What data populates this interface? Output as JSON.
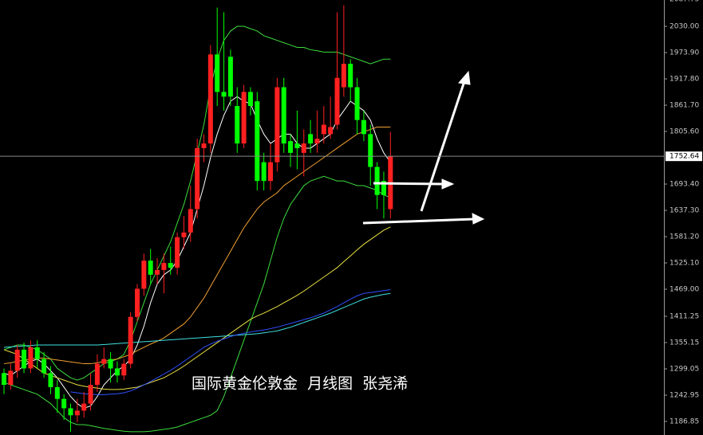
{
  "chart_data": {
    "type": "candlestick",
    "annotation": "国际黄金伦敦金  月线图  张尧浠",
    "categories": [
      null,
      null,
      null,
      null,
      null,
      null,
      null,
      null,
      null,
      null,
      null,
      null,
      null,
      null,
      null,
      null,
      null,
      null,
      null,
      null,
      null,
      null,
      null,
      null,
      null,
      null,
      null,
      null,
      null,
      null,
      null,
      null,
      null,
      null,
      null,
      null,
      null,
      null,
      null,
      null,
      null,
      null,
      null,
      null,
      null,
      null,
      null,
      null,
      null,
      null,
      null,
      null,
      null,
      null,
      null,
      null,
      null,
      null,
      null
    ],
    "open": [
      1290,
      1265,
      1295,
      1340,
      1300,
      1345,
      1320,
      1290,
      1260,
      1235,
      1215,
      1200,
      1210,
      1225,
      1265,
      1310,
      1320,
      1300,
      1285,
      1310,
      1410,
      1470,
      1530,
      1500,
      1510,
      1525,
      1515,
      1580,
      1590,
      1640,
      1770,
      1780,
      1970,
      1890,
      1965,
      1860,
      1780,
      1890,
      1870,
      1740,
      1700,
      1740,
      1900,
      1785,
      1780,
      1760,
      1800,
      1780,
      1800,
      1800,
      1820,
      1900,
      1950,
      1900,
      1830,
      1800,
      1730,
      1700,
      1640
    ],
    "high": [
      1300,
      1310,
      1350,
      1355,
      1360,
      1360,
      1335,
      1305,
      1275,
      1245,
      1225,
      1235,
      1250,
      1290,
      1330,
      1345,
      1335,
      1315,
      1320,
      1420,
      1480,
      1545,
      1555,
      1535,
      1545,
      1560,
      1590,
      1625,
      1690,
      1790,
      1800,
      1990,
      2070,
      2060,
      1980,
      1900,
      1905,
      1900,
      1890,
      1760,
      1780,
      1920,
      1920,
      1800,
      1850,
      1810,
      1830,
      1850,
      1860,
      1880,
      2060,
      2075,
      1960,
      1920,
      1850,
      1820,
      1740,
      1720,
      1805
    ],
    "low": [
      1245,
      1255,
      1280,
      1290,
      1290,
      1300,
      1280,
      1245,
      1205,
      1190,
      1165,
      1185,
      1195,
      1210,
      1250,
      1300,
      1270,
      1270,
      1275,
      1300,
      1400,
      1455,
      1480,
      1480,
      1460,
      1500,
      1500,
      1555,
      1570,
      1620,
      1740,
      1760,
      1860,
      1850,
      1860,
      1760,
      1770,
      1840,
      1680,
      1680,
      1680,
      1720,
      1760,
      1730,
      1725,
      1710,
      1760,
      1760,
      1780,
      1790,
      1810,
      1880,
      1870,
      1800,
      1785,
      1690,
      1640,
      1620,
      1620
    ],
    "close": [
      1265,
      1295,
      1340,
      1300,
      1345,
      1320,
      1290,
      1260,
      1235,
      1215,
      1200,
      1210,
      1225,
      1265,
      1310,
      1320,
      1300,
      1285,
      1310,
      1410,
      1470,
      1530,
      1500,
      1510,
      1525,
      1515,
      1580,
      1590,
      1640,
      1770,
      1780,
      1970,
      1890,
      1880,
      1880,
      1780,
      1890,
      1860,
      1700,
      1700,
      1740,
      1900,
      1780,
      1760,
      1770,
      1780,
      1780,
      1790,
      1820,
      1815,
      1920,
      1950,
      1900,
      1830,
      1800,
      1730,
      1670,
      1670,
      1752.64
    ],
    "up_color": "#ff2020",
    "down_color": "#00ff00",
    "last_price": 1752.64,
    "overlays": [
      {
        "color": "#3ddc3d",
        "values": [
          1340,
          1345,
          1350,
          1350,
          1345,
          1340,
          1330,
          1320,
          1300,
          1290,
          1280,
          1275,
          1280,
          1290,
          1300,
          1310,
          1315,
          1320,
          1330,
          1360,
          1400,
          1440,
          1480,
          1510,
          1540,
          1570,
          1610,
          1650,
          1700,
          1760,
          1820,
          1900,
          1960,
          2000,
          2020,
          2030,
          2030,
          2025,
          2020,
          2010,
          2005,
          2000,
          1995,
          1990,
          1985,
          1985,
          1980,
          1978,
          1975,
          1975,
          1975,
          1970,
          1965,
          1960,
          1955,
          1950,
          1955,
          1960,
          1960
        ]
      },
      {
        "color": "#3ddc3d",
        "values": [
          1270,
          1265,
          1260,
          1255,
          1250,
          1245,
          1235,
          1225,
          1210,
          1195,
          1185,
          1180,
          1180,
          1178,
          1175,
          1172,
          1170,
          1168,
          1166,
          1165,
          1165,
          1165,
          1166,
          1168,
          1170,
          1172,
          1175,
          1180,
          1185,
          1190,
          1195,
          1200,
          1210,
          1240,
          1280,
          1320,
          1360,
          1400,
          1440,
          1480,
          1530,
          1580,
          1620,
          1650,
          1670,
          1690,
          1700,
          1705,
          1710,
          1705,
          1700,
          1700,
          1695,
          1690,
          1690,
          1685,
          1680,
          1670,
          1665
        ]
      },
      {
        "color": "#ffffff",
        "values": [
          1290,
          1285,
          1295,
          1305,
          1315,
          1320,
          1310,
          1295,
          1280,
          1260,
          1240,
          1225,
          1215,
          1220,
          1240,
          1265,
          1280,
          1295,
          1305,
          1320,
          1350,
          1390,
          1440,
          1480,
          1500,
          1510,
          1530,
          1560,
          1590,
          1640,
          1690,
          1750,
          1800,
          1840,
          1870,
          1880,
          1870,
          1865,
          1830,
          1800,
          1780,
          1790,
          1800,
          1800,
          1780,
          1770,
          1770,
          1780,
          1790,
          1800,
          1830,
          1850,
          1870,
          1860,
          1850,
          1830,
          1790,
          1760,
          1740
        ]
      },
      {
        "color": "#f0a030",
        "values": [
          1310,
          1312,
          1315,
          1318,
          1320,
          1322,
          1322,
          1320,
          1318,
          1316,
          1314,
          1312,
          1310,
          1310,
          1312,
          1315,
          1318,
          1320,
          1325,
          1330,
          1338,
          1345,
          1352,
          1358,
          1365,
          1375,
          1385,
          1395,
          1410,
          1430,
          1450,
          1475,
          1500,
          1525,
          1550,
          1575,
          1600,
          1620,
          1640,
          1655,
          1665,
          1675,
          1690,
          1700,
          1710,
          1720,
          1730,
          1740,
          1750,
          1760,
          1770,
          1780,
          1790,
          1800,
          1805,
          1810,
          1815,
          1815,
          1815
        ]
      },
      {
        "color": "#e8e040",
        "values": [
          1340,
          1335,
          1330,
          1320,
          1310,
          1300,
          1290,
          1285,
          1280,
          1275,
          1270,
          1265,
          1262,
          1260,
          1258,
          1256,
          1255,
          1255,
          1256,
          1258,
          1260,
          1265,
          1270,
          1275,
          1280,
          1288,
          1296,
          1305,
          1315,
          1325,
          1335,
          1345,
          1355,
          1365,
          1375,
          1385,
          1395,
          1405,
          1412,
          1418,
          1425,
          1432,
          1440,
          1448,
          1456,
          1465,
          1475,
          1485,
          1495,
          1505,
          1515,
          1528,
          1540,
          1553,
          1565,
          1575,
          1585,
          1595,
          1602
        ]
      },
      {
        "color": "#40e0e0",
        "values": [
          1345,
          1346,
          1347,
          1348,
          1349,
          1350,
          1350,
          1350,
          1350,
          1350,
          1350,
          1350,
          1350,
          1350,
          1350,
          1351,
          1352,
          1353,
          1354,
          1355,
          1356,
          1357,
          1358,
          1359,
          1360,
          1361,
          1362,
          1363,
          1364,
          1365,
          1366,
          1367,
          1368,
          1369,
          1370,
          1371,
          1372,
          1373,
          1374,
          1376,
          1378,
          1380,
          1384,
          1388,
          1393,
          1398,
          1403,
          1408,
          1413,
          1418,
          1424,
          1430,
          1436,
          1442,
          1448,
          1452,
          1455,
          1458,
          1460
        ]
      },
      {
        "color": "#3050ff",
        "values": [
          null,
          null,
          null,
          null,
          null,
          null,
          null,
          null,
          null,
          null,
          1250,
          1248,
          1246,
          1245,
          1244,
          1244,
          1245,
          1246,
          1248,
          1252,
          1258,
          1265,
          1272,
          1280,
          1288,
          1296,
          1305,
          1315,
          1325,
          1335,
          1345,
          1352,
          1358,
          1363,
          1368,
          1372,
          1375,
          1378,
          1380,
          1382,
          1385,
          1388,
          1392,
          1396,
          1400,
          1404,
          1408,
          1413,
          1418,
          1425,
          1432,
          1440,
          1448,
          1455,
          1460,
          1462,
          1464,
          1466,
          1468
        ]
      }
    ],
    "ylim": [
      1157.95,
      2086.15
    ],
    "yticks": [
      2087.75,
      {
        "value": 2030,
        "label": "2030.00"
      },
      {
        "value": 1973.9,
        "label": "1973.90"
      },
      {
        "value": 1917.8,
        "label": "1917.80"
      },
      {
        "value": 1861.7,
        "label": "1861.70"
      },
      {
        "value": 1805.6,
        "label": "1805.60"
      },
      {
        "value": 1693.4,
        "label": "1693.40"
      },
      {
        "value": 1637.3,
        "label": "1637.30"
      },
      {
        "value": 1581.2,
        "label": "1581.20"
      },
      {
        "value": 1525.1,
        "label": "1525.10"
      },
      {
        "value": 1469,
        "label": "1469.00"
      },
      1411.25,
      1355.15,
      1299.05,
      1242.95,
      1186.85
    ]
  }
}
